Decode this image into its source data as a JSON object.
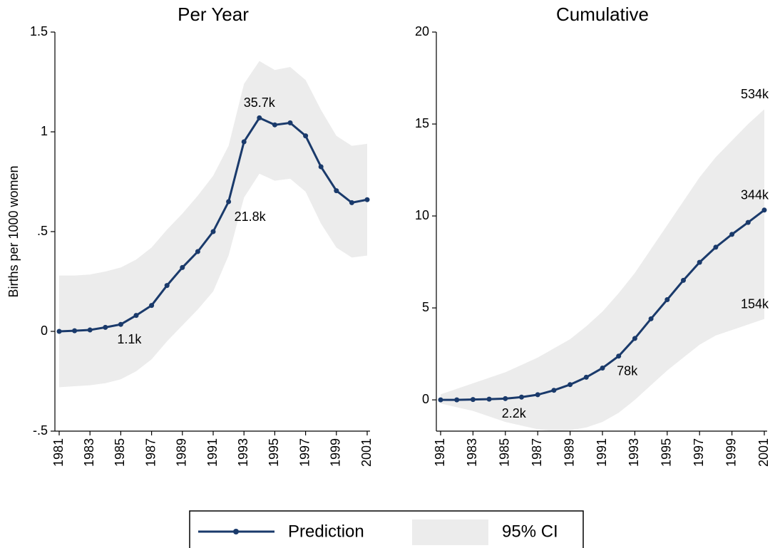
{
  "chart_data": [
    {
      "type": "line",
      "title": "Per Year",
      "ylabel": "Births per 1000 women",
      "x": [
        1981,
        1982,
        1983,
        1984,
        1985,
        1986,
        1987,
        1988,
        1989,
        1990,
        1991,
        1992,
        1993,
        1994,
        1995,
        1996,
        1997,
        1998,
        1999,
        2000,
        2001
      ],
      "series": [
        {
          "name": "Prediction",
          "color": "#1a3a6b",
          "values": [
            0,
            0.003,
            0.007,
            0.02,
            0.035,
            0.08,
            0.13,
            0.23,
            0.32,
            0.4,
            0.5,
            0.65,
            0.95,
            1.07,
            1.035,
            1.045,
            0.98,
            0.825,
            0.705,
            0.645,
            0.66
          ]
        }
      ],
      "band": {
        "name": "95% CI",
        "color": "#ececec",
        "upper": [
          0.28,
          0.28,
          0.285,
          0.3,
          0.32,
          0.36,
          0.42,
          0.51,
          0.59,
          0.68,
          0.78,
          0.93,
          1.24,
          1.355,
          1.31,
          1.325,
          1.26,
          1.11,
          0.98,
          0.93,
          0.94
        ],
        "lower": [
          -0.28,
          -0.275,
          -0.27,
          -0.26,
          -0.24,
          -0.2,
          -0.14,
          -0.05,
          0.03,
          0.11,
          0.2,
          0.38,
          0.67,
          0.79,
          0.755,
          0.765,
          0.7,
          0.54,
          0.42,
          0.37,
          0.38
        ]
      },
      "xlim": [
        1981,
        2001
      ],
      "xticks": [
        1981,
        1983,
        1985,
        1987,
        1989,
        1991,
        1993,
        1995,
        1997,
        1999,
        2001
      ],
      "ylim": [
        -0.5,
        1.5
      ],
      "yticks": [
        {
          "value": -0.5,
          "label": "-.5"
        },
        0,
        {
          "value": 0.5,
          "label": ".5"
        },
        1,
        1.5
      ],
      "annotations": [
        {
          "label": "1.1k",
          "x": 1985,
          "place": "below",
          "of": "series"
        },
        {
          "label": "21.8k",
          "x": 1992,
          "place": "right",
          "of": "series"
        },
        {
          "label": "35.7k",
          "x": 1994,
          "place": "above",
          "of": "series"
        }
      ]
    },
    {
      "type": "line",
      "title": "Cumulative",
      "x": [
        1981,
        1982,
        1983,
        1984,
        1985,
        1986,
        1987,
        1988,
        1989,
        1990,
        1991,
        1992,
        1993,
        1994,
        1995,
        1996,
        1997,
        1998,
        1999,
        2000,
        2001
      ],
      "series": [
        {
          "color": "#1a3a6b",
          "values": [
            0,
            0,
            0.02,
            0.04,
            0.07,
            0.15,
            0.28,
            0.52,
            0.83,
            1.23,
            1.73,
            2.38,
            3.34,
            4.41,
            5.45,
            6.5,
            7.48,
            8.3,
            9.0,
            9.65,
            10.32
          ]
        }
      ],
      "band": {
        "color": "#ececec",
        "upper": [
          0.3,
          0.6,
          0.9,
          1.2,
          1.5,
          1.9,
          2.3,
          2.8,
          3.3,
          4.0,
          4.8,
          5.8,
          6.9,
          8.2,
          9.5,
          10.8,
          12.1,
          13.2,
          14.1,
          15.0,
          15.8
        ],
        "lower": [
          -0.2,
          -0.4,
          -0.6,
          -0.9,
          -1.2,
          -1.4,
          -1.6,
          -1.7,
          -1.65,
          -1.5,
          -1.2,
          -0.7,
          0,
          0.8,
          1.6,
          2.3,
          3.0,
          3.5,
          3.8,
          4.1,
          4.4
        ]
      },
      "xlim": [
        1981,
        2001
      ],
      "xticks": [
        1981,
        1983,
        1985,
        1987,
        1989,
        1991,
        1993,
        1995,
        1997,
        1999,
        2001
      ],
      "ylim": [
        -1.7,
        20
      ],
      "yticks": [
        0,
        5,
        10,
        15,
        20
      ],
      "annotations": [
        {
          "label": "2.2k",
          "x": 1985,
          "place": "below",
          "of": "series"
        },
        {
          "label": "78k",
          "x": 1992,
          "place": "below",
          "of": "series"
        },
        {
          "label": "344k",
          "x": 2001,
          "place": "above",
          "of": "series"
        },
        {
          "label": "534k",
          "x": 2001,
          "place": "above",
          "of": "upper"
        },
        {
          "label": "154k",
          "x": 2001,
          "place": "above",
          "of": "lower"
        }
      ]
    }
  ]
}
